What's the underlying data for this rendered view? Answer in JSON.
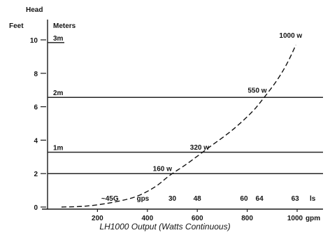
{
  "chart_data": {
    "type": "line",
    "caption": "LH1000 Output (Watts Continuous)",
    "ylabel": "Head",
    "ylabel_feet": "Feet",
    "ylabel_meters": "Meters",
    "xlabel": "gpm",
    "xlim": [
      0,
      1000
    ],
    "ylim": [
      0,
      10
    ],
    "grid": false,
    "y_ticks": [
      {
        "value": 10,
        "label": "10"
      },
      {
        "value": 8,
        "label": "8"
      },
      {
        "value": 6,
        "label": "6"
      },
      {
        "value": 4,
        "label": "4"
      },
      {
        "value": 2,
        "label": "2"
      },
      {
        "value": 0,
        "label": "0"
      }
    ],
    "x_ticks": [
      {
        "value": 200,
        "label": "200"
      },
      {
        "value": 400,
        "label": "400"
      },
      {
        "value": 600,
        "label": "600"
      },
      {
        "value": 800,
        "label": "800"
      },
      {
        "value": 1000,
        "label": "1000"
      }
    ],
    "meter_lines": [
      {
        "feet": 9.84,
        "label": "3m",
        "span": "short"
      },
      {
        "feet": 6.56,
        "label": "2m",
        "span": "full"
      },
      {
        "feet": 3.28,
        "label": "1m",
        "span": "full"
      }
    ],
    "reference_lines_feet": [
      2
    ],
    "secondary_flow_labels": {
      "unit": "ls",
      "ticks": [
        {
          "value": 250,
          "label": "~45G"
        },
        {
          "value": 382,
          "label": "gps"
        },
        {
          "value": 500,
          "label": "30"
        },
        {
          "value": 600,
          "label": "48"
        },
        {
          "value": 787,
          "label": "60"
        },
        {
          "value": 849,
          "label": "64"
        },
        {
          "value": 992,
          "label": "63"
        }
      ]
    },
    "series": [
      {
        "points": [
          [
            56,
            0
          ],
          [
            150,
            0.05
          ],
          [
            250,
            0.25
          ],
          [
            350,
            0.6
          ],
          [
            430,
            1.2
          ],
          [
            490,
            1.9
          ],
          [
            560,
            2.6
          ],
          [
            650,
            3.6
          ],
          [
            740,
            4.6
          ],
          [
            820,
            5.7
          ],
          [
            870,
            6.6
          ],
          [
            920,
            7.6
          ],
          [
            960,
            8.6
          ],
          [
            995,
            9.7
          ]
        ]
      }
    ],
    "annotations": [
      {
        "text": "1000 w",
        "x": 995,
        "y": 9.7,
        "placement": "top-left"
      },
      {
        "text": "550 w",
        "x": 870,
        "y": 6.6,
        "placement": "above-left"
      },
      {
        "text": "320 w",
        "x": 650,
        "y": 3.6,
        "placement": "left"
      },
      {
        "text": "160 w",
        "x": 490,
        "y": 1.9,
        "placement": "above-left"
      }
    ]
  }
}
